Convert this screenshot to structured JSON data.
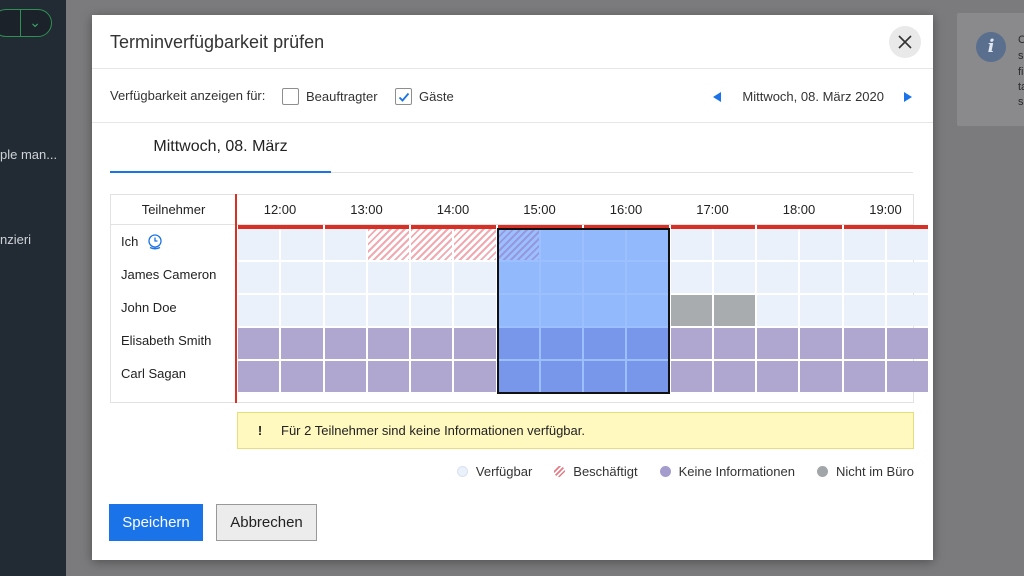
{
  "background": {
    "sidebar_text_1": "ple man...",
    "sidebar_text_2": "nzieri",
    "card_lines": [
      "C",
      "s",
      "fi",
      "ta",
      "se"
    ]
  },
  "dialog": {
    "title": "Terminverfügbarkeit prüfen",
    "close_icon": "close-icon"
  },
  "filter": {
    "label": "Verfügbarkeit anzeigen für:",
    "options": [
      {
        "label": "Beauftragter",
        "checked": false
      },
      {
        "label": "Gäste",
        "checked": true
      }
    ],
    "date": "Mittwoch, 08. März 2020"
  },
  "tab": {
    "label": "Mittwoch, 08. März"
  },
  "grid": {
    "participants_header": "Teilnehmer",
    "hours": [
      "12:00",
      "13:00",
      "14:00",
      "15:00",
      "16:00",
      "17:00",
      "18:00",
      "19:00"
    ],
    "participants": [
      {
        "name": "Ich",
        "icon": "timezone-globe-icon",
        "slots": "FFFBBBBFFFFFFFFF"
      },
      {
        "name": "James Cameron",
        "slots": "FFFFFFFFFFFFFFFF"
      },
      {
        "name": "John Doe",
        "slots": "FFFFFFFFFFOOFFFF"
      },
      {
        "name": "Elisabeth Smith",
        "slots": "NNNNNNNNNNNNNNNN"
      },
      {
        "name": "Carl Sagan",
        "slots": "NNNNNNNNNNNNNNNN"
      }
    ],
    "selection": {
      "start_slot": 6,
      "end_slot": 10
    },
    "colors": {
      "free": "#eaf1fb",
      "busy": "#f0aab0",
      "none": "#b0a7d0",
      "out": "#a9acaf",
      "selection": "#4a8aff",
      "now_line": "#d93025"
    }
  },
  "info": {
    "text": "Für 2 Teilnehmer sind keine Informationen verfügbar."
  },
  "legend": [
    {
      "key": "free",
      "label": "Verfügbar"
    },
    {
      "key": "busy",
      "label": "Beschäftigt"
    },
    {
      "key": "none",
      "label": "Keine Informationen"
    },
    {
      "key": "out",
      "label": "Nicht im Büro"
    }
  ],
  "buttons": {
    "save": "Speichern",
    "cancel": "Abbrechen"
  }
}
